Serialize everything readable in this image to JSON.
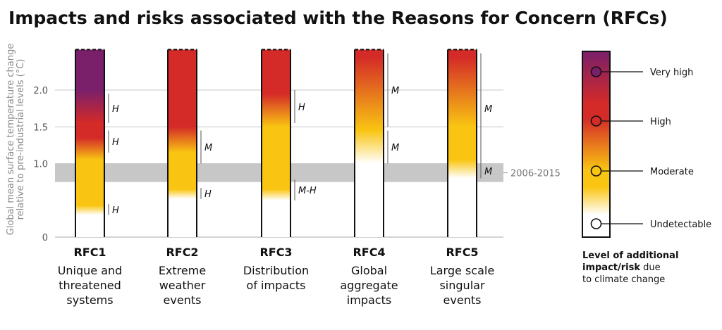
{
  "chart_data": {
    "type": "heatmap",
    "title": "Impacts and risks associated with the Reasons for Concern (RFCs)",
    "ylabel_lines": [
      "Global mean surface temperature change",
      "relative to pre-industrial levels (°C)"
    ],
    "yticks": [
      {
        "value": 0,
        "label": "0"
      },
      {
        "value": 1.0,
        "label": "1.0"
      },
      {
        "value": 1.5,
        "label": "1.5"
      },
      {
        "value": 2.0,
        "label": "2.0"
      }
    ],
    "ylim": [
      0,
      2.55
    ],
    "band": {
      "from": 0.75,
      "to": 1.0,
      "label": "2006-2015"
    },
    "levels": [
      {
        "name": "Undetectable",
        "color": "#ffffff"
      },
      {
        "name": "Moderate",
        "color": "#f9c512"
      },
      {
        "name": "High",
        "color": "#d42a28"
      },
      {
        "name": "Very high",
        "color": "#7a1f6a"
      }
    ],
    "rfcs": [
      {
        "name": "RFC1",
        "description": [
          "Unique and",
          "threatened",
          "systems"
        ],
        "gradient": [
          {
            "t": 0.3,
            "level": 0
          },
          {
            "t": 0.43,
            "level": 1
          },
          {
            "t": 1.05,
            "level": 1
          },
          {
            "t": 1.35,
            "level": 2
          },
          {
            "t": 1.55,
            "level": 2
          },
          {
            "t": 2.0,
            "level": 3
          }
        ],
        "confidence": [
          {
            "from": 0.3,
            "to": 0.45,
            "label": "H"
          },
          {
            "from": 1.15,
            "to": 1.45,
            "label": "H"
          },
          {
            "from": 1.55,
            "to": 1.95,
            "label": "H"
          }
        ]
      },
      {
        "name": "RFC2",
        "description": [
          "Extreme",
          "weather",
          "events"
        ],
        "gradient": [
          {
            "t": 0.52,
            "level": 0
          },
          {
            "t": 0.65,
            "level": 1
          },
          {
            "t": 1.15,
            "level": 1
          },
          {
            "t": 1.5,
            "level": 2
          }
        ],
        "confidence": [
          {
            "from": 0.52,
            "to": 0.67,
            "label": "H"
          },
          {
            "from": 1.0,
            "to": 1.45,
            "label": "M"
          }
        ]
      },
      {
        "name": "RFC3",
        "description": [
          "Distribution",
          "of impacts"
        ],
        "gradient": [
          {
            "t": 0.5,
            "level": 0
          },
          {
            "t": 0.65,
            "level": 1
          },
          {
            "t": 1.5,
            "level": 1
          },
          {
            "t": 1.95,
            "level": 2
          }
        ],
        "confidence": [
          {
            "from": 0.5,
            "to": 0.78,
            "label": "M-H"
          },
          {
            "from": 1.55,
            "to": 2.0,
            "label": "H"
          }
        ]
      },
      {
        "name": "RFC4",
        "description": [
          "Global",
          "aggregate",
          "impacts"
        ],
        "gradient": [
          {
            "t": 1.0,
            "level": 0
          },
          {
            "t": 1.45,
            "level": 1
          },
          {
            "t": 2.45,
            "level": 2
          }
        ],
        "confidence": [
          {
            "from": 1.0,
            "to": 1.45,
            "label": "M"
          },
          {
            "from": 1.5,
            "to": 2.5,
            "label": "M"
          }
        ]
      },
      {
        "name": "RFC5",
        "description": [
          "Large scale",
          "singular",
          "events"
        ],
        "gradient": [
          {
            "t": 0.8,
            "level": 0
          },
          {
            "t": 1.05,
            "level": 1
          },
          {
            "t": 1.5,
            "level": 1
          },
          {
            "t": 2.45,
            "level": 2
          }
        ],
        "confidence": [
          {
            "from": 0.8,
            "to": 1.0,
            "label": "M"
          },
          {
            "from": 1.0,
            "to": 2.5,
            "label": "M"
          }
        ]
      }
    ],
    "legend": {
      "title_bold": "Level of additional impact/risk",
      "title_rest": "due to climate change",
      "title_lines": [
        [
          {
            "text": "Level of additional",
            "bold": true
          }
        ],
        [
          {
            "text": "impact/risk",
            "bold": true
          },
          {
            "text": " due",
            "bold": false
          }
        ],
        [
          {
            "text": "to climate change",
            "bold": false
          }
        ]
      ],
      "markers": [
        {
          "label": "Very high",
          "level": 3
        },
        {
          "label": "High",
          "level": 2
        },
        {
          "label": "Moderate",
          "level": 1
        },
        {
          "label": "Undetectable",
          "level": 0
        }
      ]
    }
  }
}
